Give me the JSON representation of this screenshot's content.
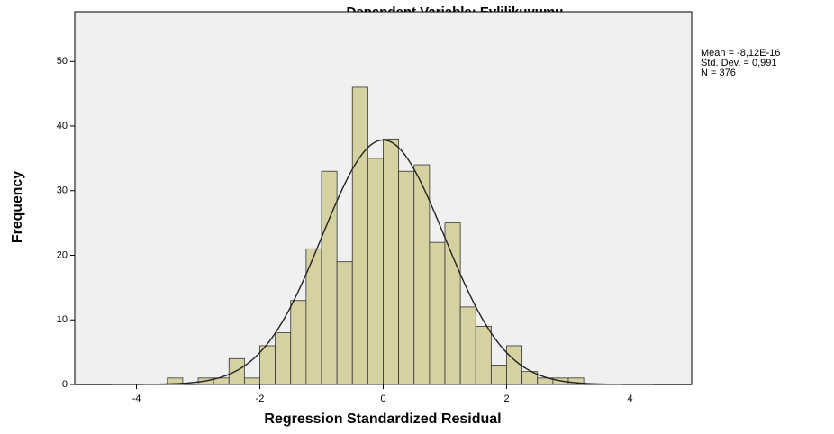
{
  "chart_data": {
    "type": "histogram",
    "title": "Dependent Variable: Evlilikuyumu",
    "xlabel": "Regression Standardized Residual",
    "ylabel": "Frequency",
    "bins": [
      -3.5,
      -3.25,
      -3,
      -2.75,
      -2.5,
      -2.25,
      -2,
      -1.75,
      -1.5,
      -1.25,
      -1,
      -0.75,
      -0.5,
      -0.25,
      0,
      0.25,
      0.5,
      0.75,
      1,
      1.25,
      1.5,
      1.75,
      2,
      2.25,
      2.5,
      2.75,
      3,
      3.25
    ],
    "values": [
      1,
      0,
      1,
      1,
      4,
      1,
      6,
      8,
      13,
      21,
      33,
      19,
      46,
      35,
      38,
      33,
      34,
      22,
      25,
      12,
      9,
      3,
      6,
      2,
      1,
      1,
      1
    ],
    "color": "#d6d1a1",
    "xlim": [
      -5,
      5
    ],
    "xticks": [
      -4,
      -2,
      0,
      2,
      4
    ],
    "ylim": [
      0,
      57.7
    ],
    "yticks": [
      0,
      10,
      20,
      30,
      40,
      50
    ],
    "normal_curve": true,
    "stats": [
      {
        "value": -8.12e-16,
        "label": "Mean = -8,12E-16"
      },
      {
        "value": 0.991,
        "label": "Std. Dev. = 0,991"
      },
      {
        "value": 376,
        "label": "N = 376"
      }
    ]
  }
}
